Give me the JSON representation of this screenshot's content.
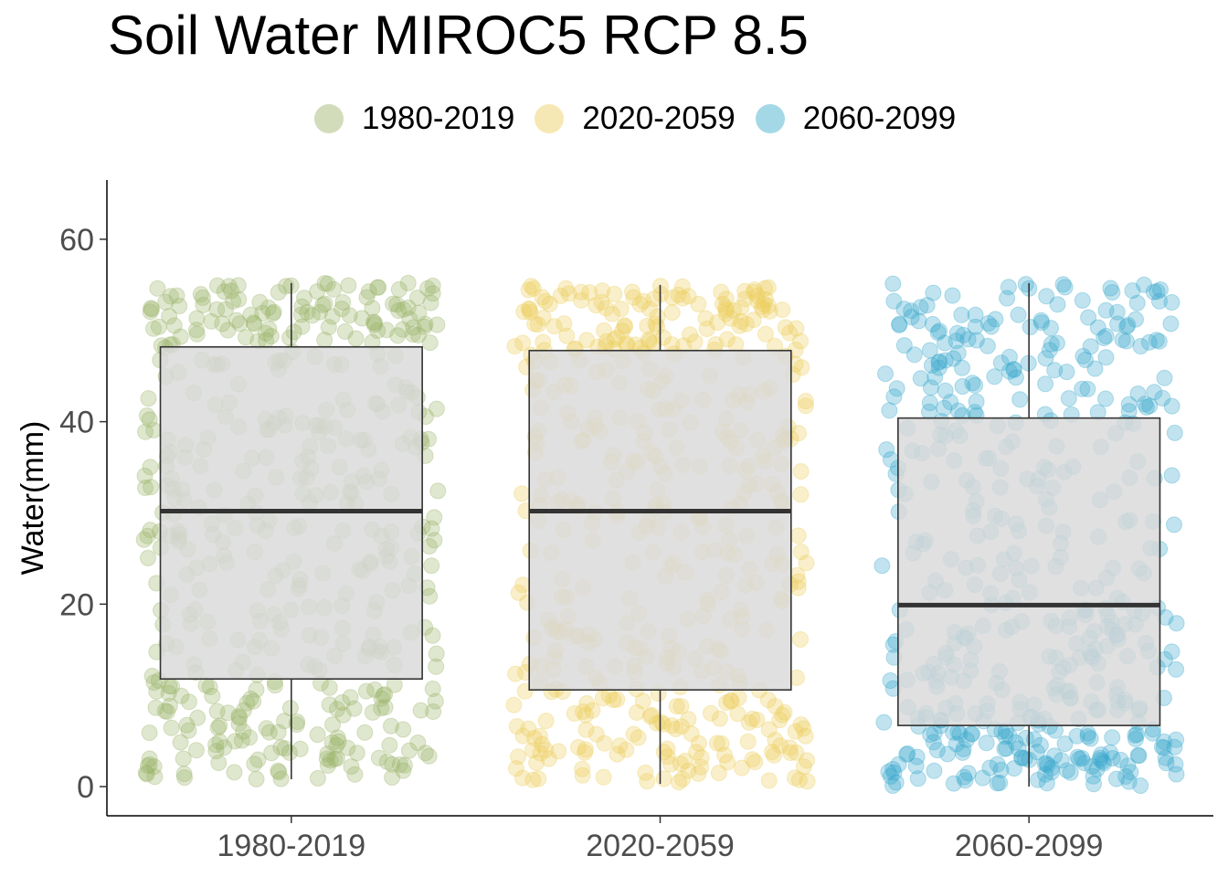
{
  "chart_data": {
    "type": "boxplot",
    "title": "Soil Water MIROC5 RCP 8.5",
    "xlabel": "",
    "ylabel": "Water(mm)",
    "ylim": [
      -3.2,
      66.5
    ],
    "yticks": [
      0,
      20,
      40,
      60
    ],
    "categories": [
      "1980-2019",
      "2020-2059",
      "2060-2099"
    ],
    "legend_position": "top",
    "grid": false,
    "series": [
      {
        "name": "1980-2019",
        "color": "#9cb36a",
        "box": {
          "min": 0.8,
          "q1": 11.8,
          "median": 30.2,
          "q3": 48.2,
          "max": 55.2
        },
        "points": {
          "count": 480,
          "ymin": 0.8,
          "ymax": 55.2
        }
      },
      {
        "name": "2020-2059",
        "color": "#eccd5b",
        "box": {
          "min": 0.3,
          "q1": 10.6,
          "median": 30.2,
          "q3": 47.8,
          "max": 55.0
        },
        "points": {
          "count": 480,
          "ymin": 0.3,
          "ymax": 55.0
        }
      },
      {
        "name": "2060-2099",
        "color": "#3aa9cc",
        "box": {
          "min": 0.0,
          "q1": 6.7,
          "median": 19.9,
          "q3": 40.4,
          "max": 55.2
        },
        "points": {
          "count": 480,
          "ymin": 0.0,
          "ymax": 55.2
        }
      }
    ]
  }
}
